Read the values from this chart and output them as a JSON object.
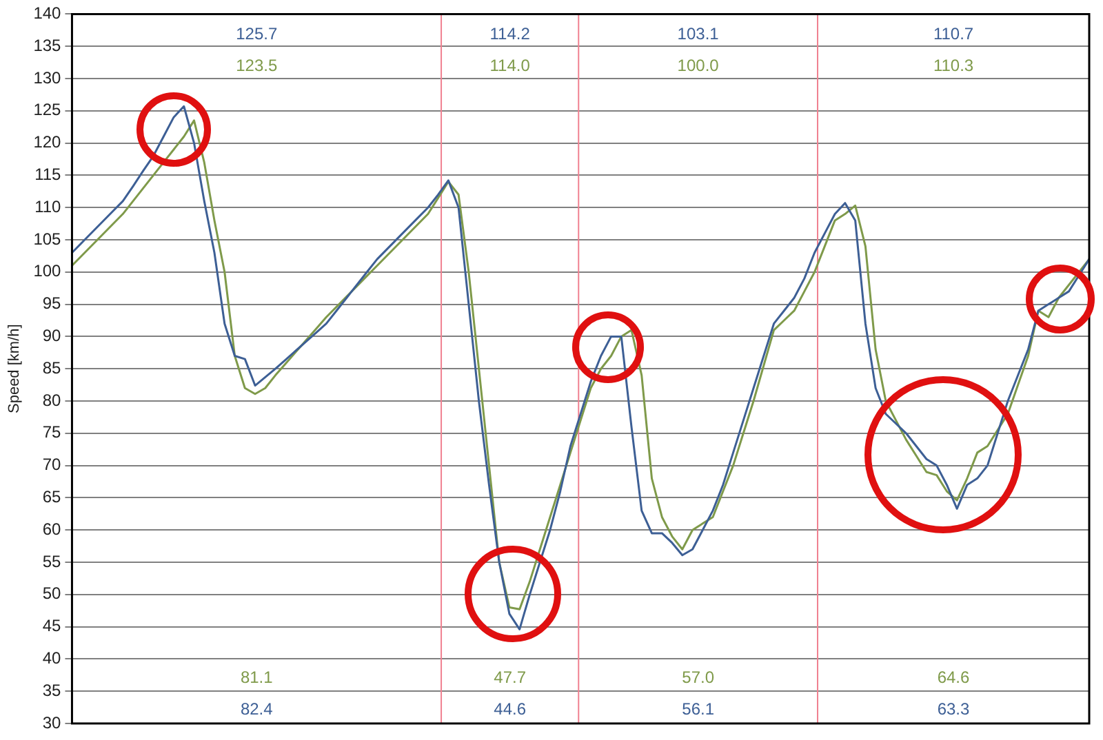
{
  "chart_data": {
    "type": "line",
    "ylabel": "Speed [km/h]",
    "categories": [
      null,
      null,
      null,
      null,
      null,
      null,
      null,
      null,
      null,
      null,
      null,
      null,
      null,
      null,
      null,
      null,
      null,
      null,
      null,
      null,
      null,
      null,
      null,
      null,
      null,
      null,
      null,
      null,
      null,
      null,
      null,
      null,
      null,
      null,
      null,
      null,
      null,
      null,
      null,
      null,
      null,
      null,
      null,
      null,
      null,
      null,
      null,
      null,
      null,
      null,
      null,
      null,
      null,
      null,
      null,
      null,
      null,
      null,
      null,
      null,
      null,
      null,
      null,
      null,
      null,
      null,
      null,
      null,
      null,
      null,
      null,
      null,
      null,
      null,
      null,
      null,
      null,
      null,
      null,
      null,
      null,
      null,
      null,
      null,
      null,
      null,
      null,
      null,
      null,
      null,
      null,
      null,
      null,
      null,
      null,
      null,
      null,
      null,
      null,
      null,
      null
    ],
    "series": [
      {
        "color": "#3d5f95",
        "values": [
          103,
          104.6,
          106.2,
          107.8,
          109.4,
          111,
          113.3,
          115.7,
          118,
          121,
          124,
          125.7,
          120,
          111,
          103,
          92,
          87,
          86.5,
          82.4,
          83.7,
          85,
          86.4,
          87.8,
          89.2,
          90.6,
          92,
          94,
          96,
          98,
          100,
          102,
          103.6,
          105.2,
          106.8,
          108.4,
          110,
          112,
          114.2,
          110,
          95,
          80,
          67,
          55,
          47,
          44.6,
          50,
          55,
          60,
          66,
          73,
          78,
          83,
          87,
          90,
          90,
          76,
          63,
          59.5,
          59.5,
          58,
          56.1,
          57,
          60,
          63,
          67,
          72,
          77,
          82,
          87,
          92,
          94,
          96,
          99,
          103,
          106,
          109,
          110.7,
          108,
          92,
          82,
          78,
          76.5,
          75,
          73,
          71,
          70,
          67,
          63.3,
          67,
          68,
          70,
          75,
          80,
          84,
          88,
          94,
          95,
          96,
          97,
          99.5,
          102
        ]
      },
      {
        "color": "#7f9a4a",
        "values": [
          101,
          102.6,
          104.2,
          105.8,
          107.4,
          109,
          111,
          113,
          115,
          117,
          119,
          121,
          123.5,
          117,
          108,
          100,
          87,
          82,
          81.1,
          82,
          84,
          85.8,
          87.6,
          89.4,
          91.2,
          93,
          94.6,
          96.2,
          97.8,
          99.4,
          101,
          102.6,
          104.2,
          105.8,
          107.4,
          109,
          111.5,
          114.0,
          112,
          100,
          85,
          70,
          55,
          48,
          47.7,
          52,
          57,
          62,
          67,
          72,
          77,
          82,
          85,
          87,
          90,
          91,
          84,
          68,
          62,
          59,
          57.0,
          60,
          61,
          62,
          66,
          70,
          75,
          80,
          85.5,
          91,
          92.5,
          94,
          97,
          100,
          104,
          108,
          109,
          110.3,
          104,
          88,
          80,
          77,
          74,
          71.5,
          69,
          68.5,
          66,
          64.6,
          68,
          72,
          73,
          75.5,
          78,
          82.5,
          87,
          94,
          93,
          96,
          98,
          100,
          102
        ]
      }
    ],
    "ylim": [
      30,
      140
    ],
    "yticks": [
      30,
      35,
      40,
      45,
      50,
      55,
      60,
      65,
      70,
      75,
      80,
      85,
      90,
      95,
      100,
      105,
      110,
      115,
      120,
      125,
      130,
      135,
      140
    ],
    "grid": "y",
    "legend": false,
    "marker": "none",
    "line_style": "solid",
    "tick_labels": "y",
    "annotations": [
      "125.7",
      "123.5",
      "81.1",
      "82.4",
      "114.2",
      "114.0",
      "47.7",
      "44.6",
      "103.1",
      "100.0",
      "57.0",
      "56.1",
      "110.7",
      "110.3",
      "64.6",
      "63.3"
    ]
  }
}
